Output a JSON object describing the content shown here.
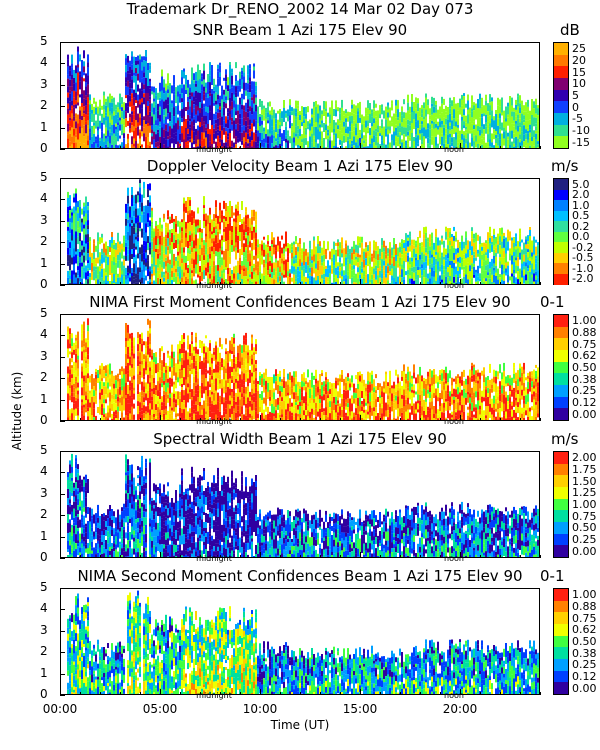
{
  "figure": {
    "suptitle": "Trademark Dr_RENO_2002  14 Mar 02 Day 073",
    "ylabel": "Altitude (km)",
    "xlabel": "Time (UT)",
    "x_ticks": [
      "00:00",
      "05:00",
      "10:00",
      "15:00",
      "20:00"
    ],
    "y_ticks": [
      "0",
      "1",
      "2",
      "3",
      "4",
      "5"
    ],
    "markers": [
      "midnight",
      "noon"
    ]
  },
  "chart_data": [
    {
      "type": "heatmap",
      "title": "SNR Beam 1 Azi 175 Elev 90",
      "unit": "dB",
      "xlabel": "Time (UT)",
      "ylabel": "Altitude (km)",
      "xlim": [
        0,
        24
      ],
      "ylim": [
        0,
        5
      ],
      "colorbar_ticks": [
        "25",
        "20",
        "15",
        "10",
        "5",
        "0",
        "-5",
        "-10",
        "-15"
      ],
      "colorbar_colors": [
        "#ffb000",
        "#ff7800",
        "#ff2000",
        "#800070",
        "#3000b0",
        "#1040ff",
        "#00b0e0",
        "#30e090",
        "#90ff20"
      ],
      "echo": [
        {
          "t0": 0.3,
          "t1": 1.4,
          "h": 4.7,
          "level": 0.95
        },
        {
          "t0": 1.4,
          "t1": 3.2,
          "h": 2.6,
          "level": 0.35
        },
        {
          "t0": 3.2,
          "t1": 4.5,
          "h": 4.9,
          "level": 0.85
        },
        {
          "t0": 4.5,
          "t1": 6.0,
          "h": 3.6,
          "level": 0.55
        },
        {
          "t0": 6.0,
          "t1": 9.8,
          "h": 3.9,
          "level": 0.7
        },
        {
          "t0": 9.8,
          "t1": 11.5,
          "h": 2.3,
          "level": 0.35
        },
        {
          "t0": 11.5,
          "t1": 17.0,
          "h": 2.2,
          "level": 0.2
        },
        {
          "t0": 17.0,
          "t1": 24.0,
          "h": 2.5,
          "level": 0.15
        }
      ]
    },
    {
      "type": "heatmap",
      "title": "Doppler Velocity Beam 1 Azi 175 Elev 90",
      "unit": "m/s",
      "xlabel": "Time (UT)",
      "ylabel": "Altitude (km)",
      "xlim": [
        0,
        24
      ],
      "ylim": [
        0,
        5
      ],
      "colorbar_ticks": [
        "5.0",
        "2.0",
        "1.0",
        "0.5",
        "0.2",
        "0.0",
        "-0.2",
        "-0.5",
        "-1.0",
        "-2.0"
      ],
      "colorbar_colors": [
        "#202080",
        "#0000ff",
        "#0080ff",
        "#00c0ff",
        "#30e0a0",
        "#60ff40",
        "#c0ff00",
        "#ffd000",
        "#ff8000",
        "#ff2000"
      ],
      "echo": [
        {
          "t0": 0.3,
          "t1": 1.4,
          "h": 4.5,
          "level": 0.8
        },
        {
          "t0": 1.4,
          "t1": 3.2,
          "h": 2.4,
          "level": 0.5
        },
        {
          "t0": 3.2,
          "t1": 4.5,
          "h": 4.9,
          "level": 0.9
        },
        {
          "t0": 4.5,
          "t1": 6.0,
          "h": 3.5,
          "level": 0.4
        },
        {
          "t0": 6.0,
          "t1": 9.8,
          "h": 4.0,
          "level": 0.3
        },
        {
          "t0": 9.8,
          "t1": 11.5,
          "h": 2.4,
          "level": 0.35
        },
        {
          "t0": 11.5,
          "t1": 17.0,
          "h": 2.2,
          "level": 0.5
        },
        {
          "t0": 17.0,
          "t1": 24.0,
          "h": 2.6,
          "level": 0.6
        }
      ]
    },
    {
      "type": "heatmap",
      "title": "NIMA First Moment Confidences Beam 1 Azi 175 Elev 90",
      "unit": "0-1",
      "xlabel": "Time (UT)",
      "ylabel": "Altitude (km)",
      "xlim": [
        0,
        24
      ],
      "ylim": [
        0,
        5
      ],
      "colorbar_ticks": [
        "1.00",
        "0.88",
        "0.75",
        "0.62",
        "0.50",
        "0.38",
        "0.25",
        "0.12",
        "0.00"
      ],
      "colorbar_colors": [
        "#ff2010",
        "#ff8000",
        "#ffd000",
        "#f0ff00",
        "#40ff40",
        "#00e0a0",
        "#00a0ff",
        "#0040ff",
        "#3000a0"
      ],
      "echo": [
        {
          "t0": 0.3,
          "t1": 1.4,
          "h": 4.9,
          "level": 0.9
        },
        {
          "t0": 1.4,
          "t1": 3.2,
          "h": 2.6,
          "level": 0.8
        },
        {
          "t0": 3.2,
          "t1": 4.5,
          "h": 4.9,
          "level": 0.95
        },
        {
          "t0": 4.5,
          "t1": 6.0,
          "h": 3.6,
          "level": 0.85
        },
        {
          "t0": 6.0,
          "t1": 9.8,
          "h": 4.0,
          "level": 0.95
        },
        {
          "t0": 9.8,
          "t1": 11.5,
          "h": 2.4,
          "level": 0.8
        },
        {
          "t0": 11.5,
          "t1": 17.0,
          "h": 2.3,
          "level": 0.85
        },
        {
          "t0": 17.0,
          "t1": 24.0,
          "h": 2.6,
          "level": 0.85
        }
      ]
    },
    {
      "type": "heatmap",
      "title": "Spectral Width Beam 1 Azi 175 Elev 90",
      "unit": "m/s",
      "xlabel": "Time (UT)",
      "ylabel": "Altitude (km)",
      "xlim": [
        0,
        24
      ],
      "ylim": [
        0,
        5
      ],
      "colorbar_ticks": [
        "2.00",
        "1.75",
        "1.50",
        "1.25",
        "1.00",
        "0.75",
        "0.50",
        "0.25",
        "0.00"
      ],
      "colorbar_colors": [
        "#ff2010",
        "#ff8000",
        "#ffd000",
        "#f0ff00",
        "#40ff40",
        "#00e0a0",
        "#00a0ff",
        "#0040ff",
        "#3000a0"
      ],
      "echo": [
        {
          "t0": 0.3,
          "t1": 1.4,
          "h": 4.7,
          "level": 0.3
        },
        {
          "t0": 1.4,
          "t1": 3.2,
          "h": 2.5,
          "level": 0.25
        },
        {
          "t0": 3.2,
          "t1": 4.5,
          "h": 4.9,
          "level": 0.3
        },
        {
          "t0": 4.5,
          "t1": 6.0,
          "h": 3.4,
          "level": 0.2
        },
        {
          "t0": 6.0,
          "t1": 9.8,
          "h": 4.1,
          "level": 0.15
        },
        {
          "t0": 9.8,
          "t1": 11.5,
          "h": 2.3,
          "level": 0.25
        },
        {
          "t0": 11.5,
          "t1": 17.0,
          "h": 2.2,
          "level": 0.3
        },
        {
          "t0": 17.0,
          "t1": 24.0,
          "h": 2.5,
          "level": 0.3
        }
      ]
    },
    {
      "type": "heatmap",
      "title": "NIMA Second Moment Confidences Beam 1 Azi 175 Elev 90",
      "unit": "0-1",
      "xlabel": "Time (UT)",
      "ylabel": "Altitude (km)",
      "xlim": [
        0,
        24
      ],
      "ylim": [
        0,
        5
      ],
      "colorbar_ticks": [
        "1.00",
        "0.88",
        "0.75",
        "0.62",
        "0.50",
        "0.38",
        "0.25",
        "0.12",
        "0.00"
      ],
      "colorbar_colors": [
        "#ff2010",
        "#ff8000",
        "#ffd000",
        "#f0ff00",
        "#40ff40",
        "#00e0a0",
        "#00a0ff",
        "#0040ff",
        "#3000a0"
      ],
      "echo": [
        {
          "t0": 0.3,
          "t1": 1.4,
          "h": 4.6,
          "level": 0.5
        },
        {
          "t0": 1.4,
          "t1": 3.2,
          "h": 2.5,
          "level": 0.4
        },
        {
          "t0": 3.2,
          "t1": 4.5,
          "h": 4.9,
          "level": 0.55
        },
        {
          "t0": 4.5,
          "t1": 6.0,
          "h": 3.6,
          "level": 0.45
        },
        {
          "t0": 6.0,
          "t1": 9.8,
          "h": 4.0,
          "level": 0.6
        },
        {
          "t0": 9.8,
          "t1": 11.5,
          "h": 2.4,
          "level": 0.35
        },
        {
          "t0": 11.5,
          "t1": 17.0,
          "h": 2.2,
          "level": 0.4
        },
        {
          "t0": 17.0,
          "t1": 24.0,
          "h": 2.5,
          "level": 0.4
        }
      ]
    }
  ]
}
